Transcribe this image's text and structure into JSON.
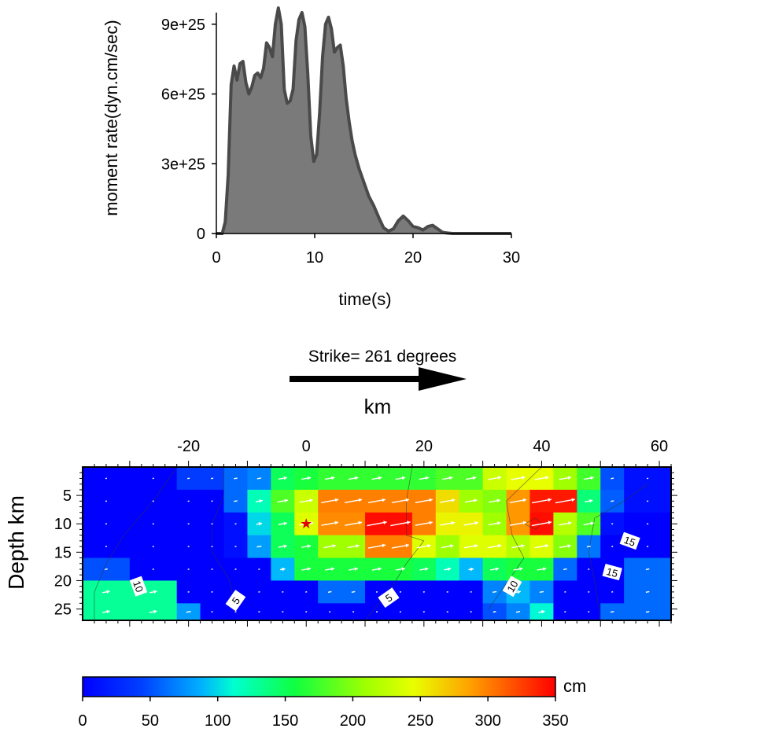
{
  "chart_data": [
    {
      "type": "area",
      "xlabel": "time(s)",
      "ylabel": "moment rate(dyn.cm/sec)",
      "xlim": [
        0,
        30
      ],
      "ylim": [
        0,
        9.5e+25
      ],
      "xticks": [
        "0",
        "10",
        "20",
        "30"
      ],
      "yticks": [
        "0",
        "3e+25",
        "6e+25",
        "9e+25"
      ],
      "fill_color": "#7a7a7a",
      "line_color": "#4a4a4a",
      "x": [
        0,
        0.6,
        0.9,
        1.2,
        1.5,
        1.8,
        2.1,
        2.4,
        2.7,
        3.0,
        3.3,
        3.6,
        3.9,
        4.2,
        4.5,
        4.8,
        5.1,
        5.4,
        5.7,
        6.0,
        6.3,
        6.6,
        6.9,
        7.2,
        7.5,
        7.8,
        8.1,
        8.4,
        8.7,
        9.0,
        9.3,
        9.6,
        9.9,
        10.2,
        10.5,
        10.8,
        11.1,
        11.4,
        11.7,
        12.0,
        12.3,
        12.6,
        12.9,
        13.2,
        13.5,
        13.8,
        14.1,
        14.5,
        15.0,
        15.5,
        16.0,
        16.5,
        17.0,
        17.5,
        18.0,
        18.5,
        19.0,
        19.5,
        20.0,
        20.5,
        21.0,
        21.5,
        22.0,
        22.5,
        23.0,
        23.5,
        24.0,
        25.0,
        30.0
      ],
      "y": [
        0,
        0.0,
        5e+24,
        2.5e+25,
        6.4e+25,
        7.2e+25,
        6.6e+25,
        7.3e+25,
        7.4e+25,
        6.5e+25,
        6e+25,
        6.3e+25,
        6.8e+25,
        6.9e+25,
        6.7e+25,
        7.1e+25,
        8.2e+25,
        8e+25,
        7.6e+25,
        9e+25,
        9.7e+25,
        9e+25,
        6.2e+25,
        5.6e+25,
        5.7e+25,
        6.2e+25,
        8.3e+25,
        9.2e+25,
        9.5e+25,
        8.9e+25,
        6.8e+25,
        4.2e+25,
        3.1e+25,
        3.4e+25,
        5.2e+25,
        7.6e+25,
        9e+25,
        9.3e+25,
        8.8e+25,
        7.8e+25,
        8e+25,
        8.1e+25,
        7.2e+25,
        5.8e+25,
        4.8e+25,
        4e+25,
        3.4e+25,
        2.8e+25,
        2.2e+25,
        1.6e+25,
        1.2e+25,
        7e+24,
        2.5e+24,
        1e+24,
        2e+24,
        5.5e+24,
        7.5e+24,
        5.5e+24,
        3e+24,
        2.5e+24,
        1.5e+24,
        3e+24,
        3.5e+24,
        2e+24,
        5e+23,
        2e+23,
        0,
        0,
        0
      ]
    },
    {
      "type": "heatmap",
      "title": "Strike= 261 degrees",
      "xlabel": "km",
      "ylabel": "Depth km",
      "xlim": [
        -38,
        62
      ],
      "ylim": [
        27,
        0
      ],
      "xticks": [
        "-20",
        "0",
        "20",
        "40",
        "60"
      ],
      "yticks": [
        "5",
        "10",
        "15",
        "20",
        "25"
      ],
      "hypocenter": {
        "x": 0,
        "y": 10
      },
      "x_edges": [
        -38,
        -30,
        -22,
        -18,
        -14,
        -10,
        -6,
        -2,
        2,
        6,
        10,
        14,
        18,
        22,
        26,
        30,
        34,
        38,
        42,
        46,
        50,
        54,
        62
      ],
      "y_edges": [
        0,
        4,
        8,
        12,
        16,
        20,
        24,
        27
      ],
      "values": [
        [
          0,
          0,
          40,
          40,
          60,
          70,
          150,
          160,
          170,
          170,
          170,
          170,
          170,
          180,
          180,
          230,
          245,
          245,
          210,
          175,
          50,
          10
        ],
        [
          0,
          0,
          0,
          0,
          60,
          120,
          180,
          230,
          300,
          300,
          300,
          300,
          300,
          260,
          210,
          200,
          290,
          340,
          340,
          140,
          55,
          10
        ],
        [
          0,
          0,
          0,
          0,
          10,
          100,
          150,
          240,
          295,
          295,
          345,
          345,
          300,
          250,
          250,
          210,
          290,
          345,
          220,
          180,
          10,
          0
        ],
        [
          0,
          0,
          0,
          0,
          10,
          80,
          150,
          160,
          210,
          210,
          300,
          300,
          240,
          210,
          240,
          240,
          220,
          240,
          200,
          65,
          0,
          0
        ],
        [
          50,
          0,
          0,
          0,
          0,
          0,
          90,
          160,
          160,
          160,
          160,
          160,
          150,
          120,
          90,
          150,
          160,
          160,
          60,
          0,
          0,
          60
        ],
        [
          130,
          130,
          0,
          0,
          0,
          0,
          0,
          0,
          60,
          60,
          0,
          0,
          0,
          0,
          0,
          70,
          90,
          70,
          0,
          0,
          0,
          60
        ],
        [
          130,
          130,
          80,
          0,
          0,
          0,
          0,
          0,
          0,
          0,
          0,
          0,
          0,
          0,
          0,
          50,
          70,
          110,
          0,
          0,
          60,
          60
        ]
      ],
      "contour_labels": [
        "10",
        "5",
        "5",
        "10",
        "15",
        "15"
      ],
      "colorbar": {
        "label": "cm",
        "range": [
          0,
          350
        ],
        "ticks": [
          "0",
          "50",
          "100",
          "150",
          "200",
          "250",
          "300",
          "350"
        ]
      }
    }
  ]
}
